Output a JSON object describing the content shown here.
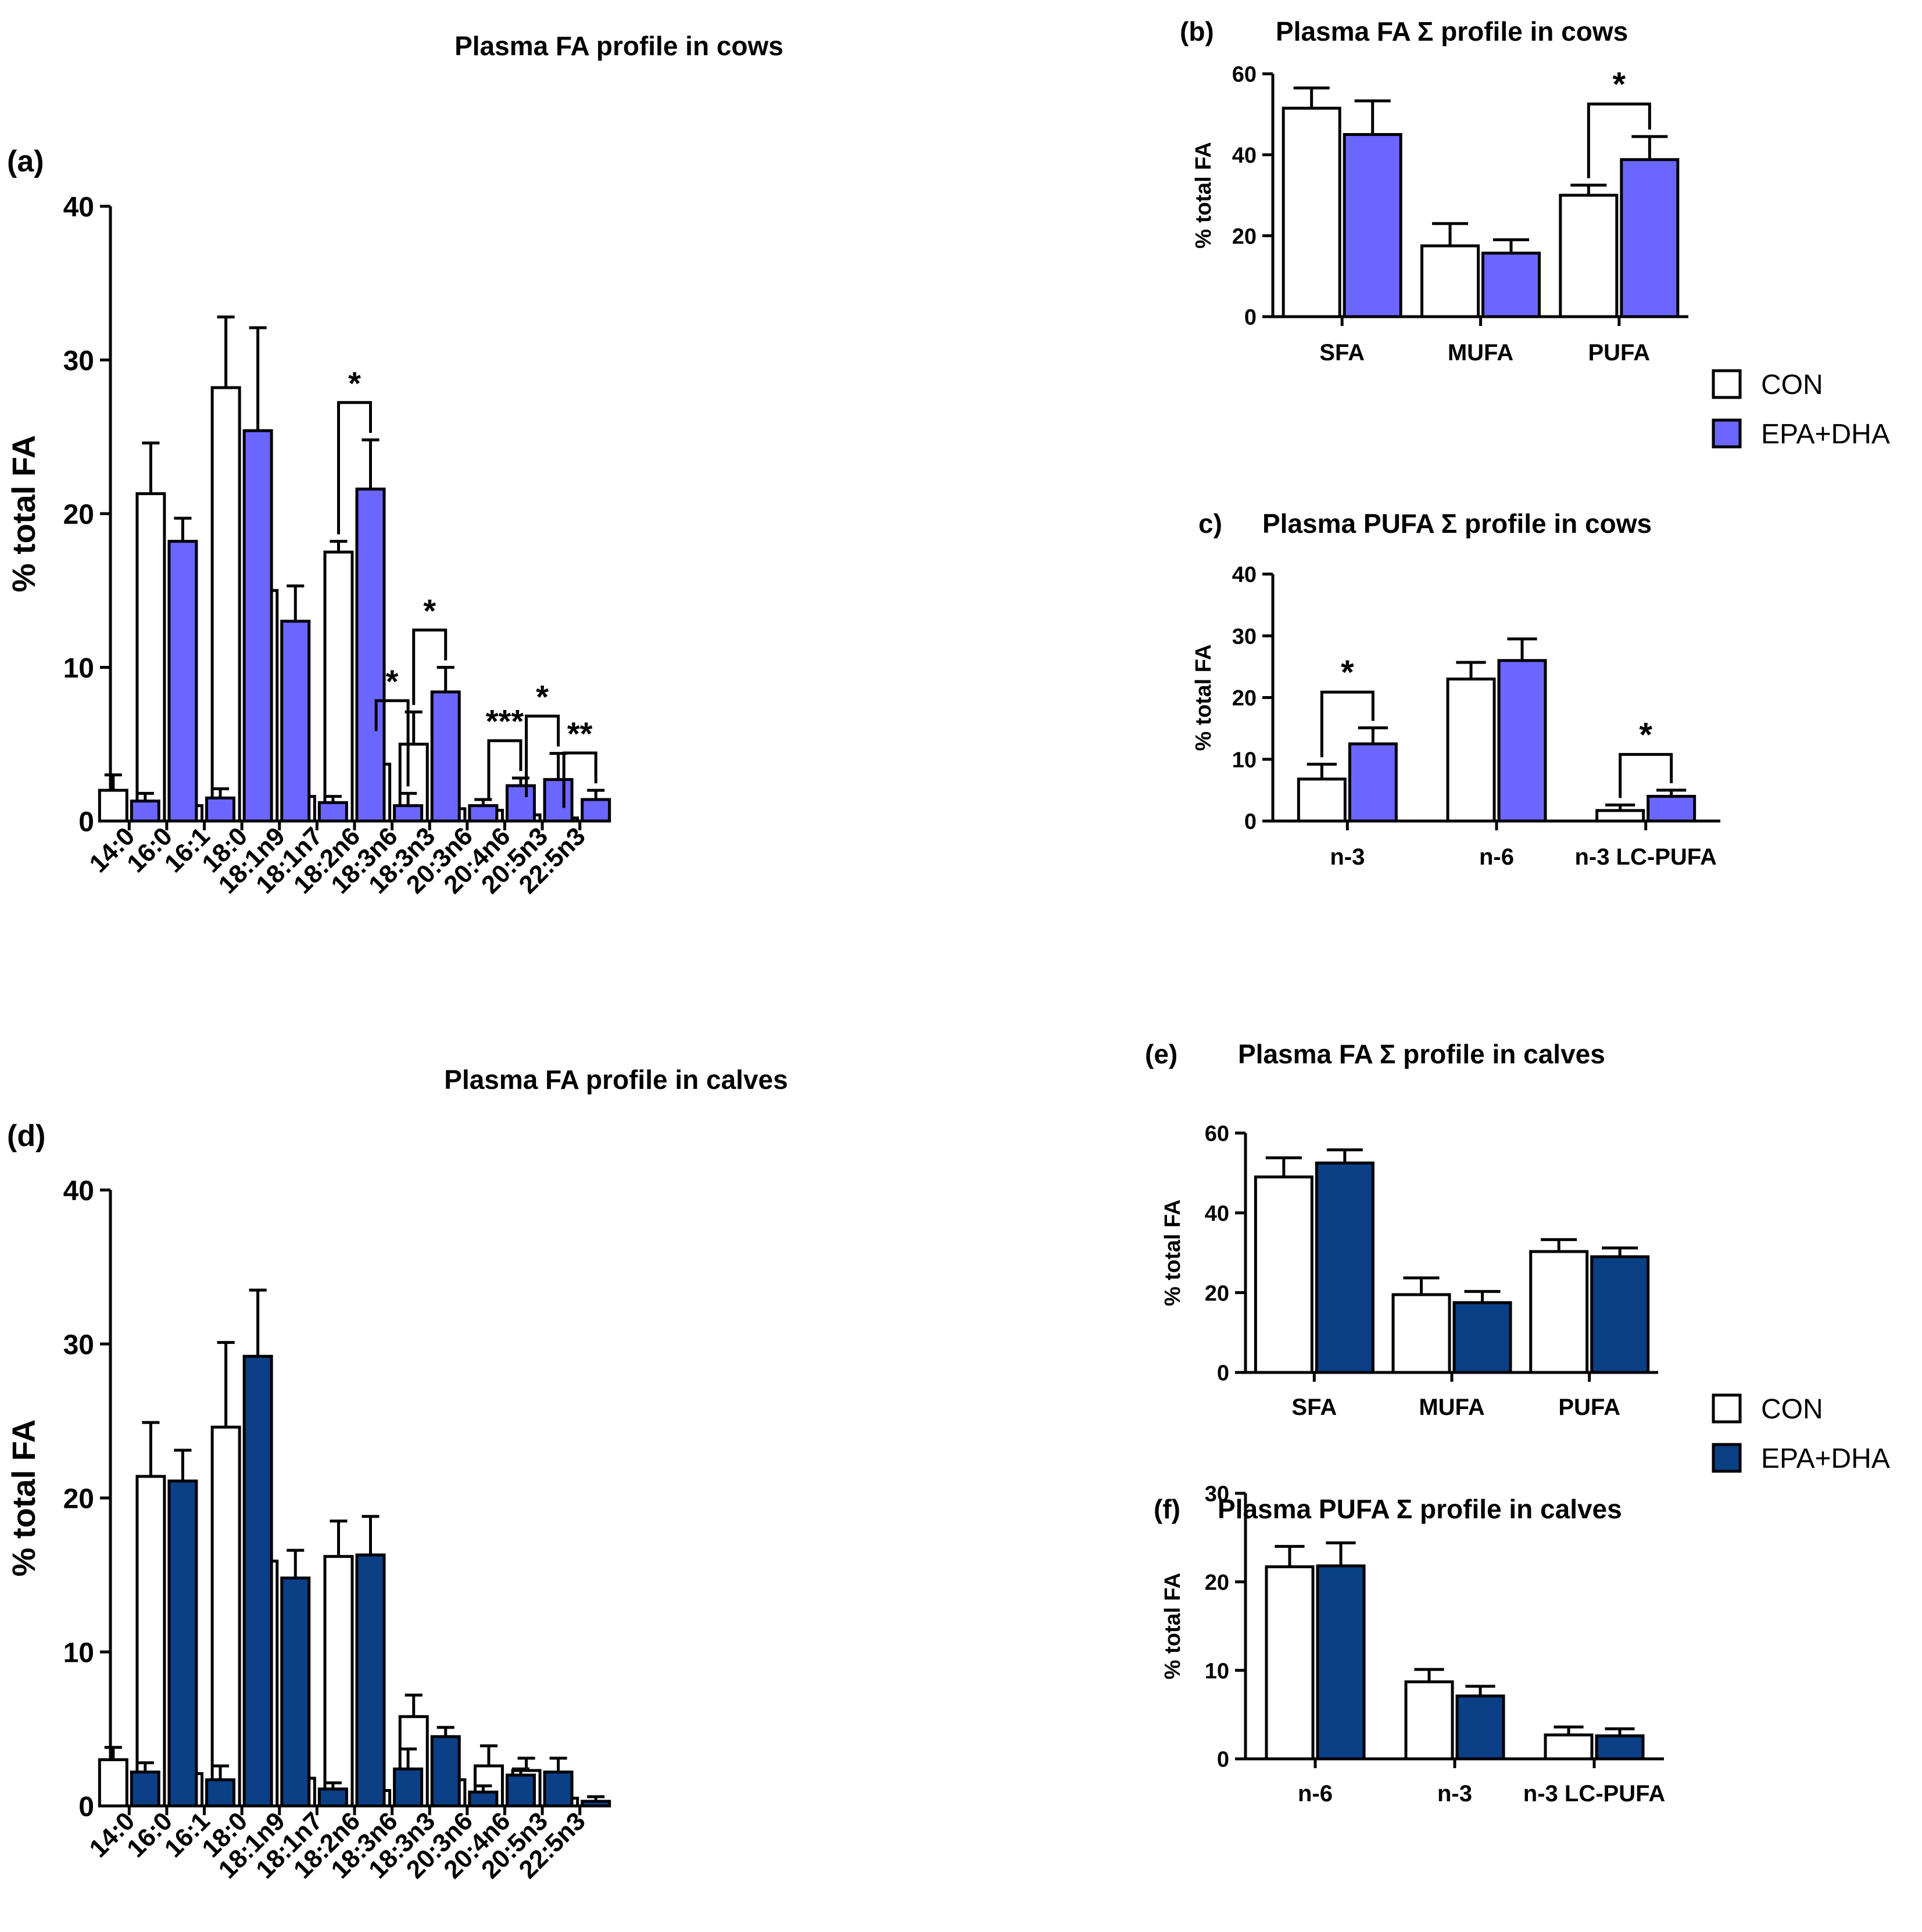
{
  "colors": {
    "con_fill": "#ffffff",
    "cow_fill": "#6b66ff",
    "calf_fill": "#0b3f86",
    "stroke": "#000000"
  },
  "legend_cows": {
    "items": [
      "CON",
      "EPA+DHA"
    ]
  },
  "legend_calves": {
    "items": [
      "CON",
      "EPA+DHA"
    ]
  },
  "chart_data": [
    {
      "id": "a",
      "panel_label": "(a)",
      "type": "bar",
      "title": "Plasma FA profile in cows",
      "xlabel": "",
      "ylabel": "% total FA",
      "ylim": [
        0,
        40
      ],
      "yticks": [
        0,
        10,
        20,
        30,
        40
      ],
      "categories": [
        "14:0",
        "16:0",
        "16:1",
        "18:0",
        "18:1n9",
        "18:1n7",
        "18:2n6",
        "18:3n6",
        "18:3n3",
        "20:3n6",
        "20:4n6",
        "20:5n3",
        "22:5n3"
      ],
      "series": [
        {
          "name": "CON",
          "values": [
            2.0,
            21.3,
            1.0,
            28.2,
            15.0,
            1.6,
            17.5,
            3.7,
            5.0,
            0.8,
            0.7,
            0.4,
            0.2
          ],
          "errors": [
            1.0,
            3.3,
            0.5,
            4.6,
            3.8,
            1.1,
            0.7,
            1.7,
            2.1,
            0.5,
            0.3,
            0.7,
            0.2
          ]
        },
        {
          "name": "EPA+DHA",
          "values": [
            1.3,
            18.2,
            1.5,
            25.4,
            13.0,
            1.2,
            21.6,
            1.0,
            8.4,
            1.0,
            2.3,
            2.7,
            1.4
          ],
          "errors": [
            0.5,
            1.5,
            0.6,
            6.7,
            2.3,
            0.4,
            3.2,
            0.8,
            1.6,
            0.4,
            0.5,
            1.7,
            0.6
          ]
        }
      ],
      "significance": [
        {
          "category": "18:2n6",
          "label": "*"
        },
        {
          "category": "18:3n6",
          "label": "*"
        },
        {
          "category": "18:3n3",
          "label": "*"
        },
        {
          "category": "20:4n6",
          "label": "***"
        },
        {
          "category": "20:5n3",
          "label": "*"
        },
        {
          "category": "22:5n3",
          "label": "**"
        }
      ]
    },
    {
      "id": "b",
      "panel_label": "(b)",
      "type": "bar",
      "title": "Plasma FA Σ profile in cows",
      "ylabel": "% total FA",
      "ylim": [
        0,
        60
      ],
      "yticks": [
        0,
        20,
        40,
        60
      ],
      "categories": [
        "SFA",
        "MUFA",
        "PUFA"
      ],
      "series": [
        {
          "name": "CON",
          "values": [
            51.5,
            17.5,
            30.0
          ],
          "errors": [
            5.0,
            5.5,
            2.5
          ]
        },
        {
          "name": "EPA+DHA",
          "values": [
            45.0,
            15.7,
            38.8
          ],
          "errors": [
            8.3,
            3.3,
            5.7
          ]
        }
      ],
      "significance": [
        {
          "category": "PUFA",
          "label": "*"
        }
      ]
    },
    {
      "id": "c",
      "panel_label": "c)",
      "type": "bar",
      "title": "Plasma PUFA Σ profile in cows",
      "ylabel": "% total FA",
      "ylim": [
        0,
        40
      ],
      "yticks": [
        0,
        10,
        20,
        30,
        40
      ],
      "categories": [
        "n-3",
        "n-6",
        "n-3 LC-PUFA"
      ],
      "series": [
        {
          "name": "CON",
          "values": [
            6.8,
            23.0,
            1.7
          ],
          "errors": [
            2.4,
            2.7,
            0.9
          ]
        },
        {
          "name": "EPA+DHA",
          "values": [
            12.5,
            26.0,
            4.0
          ],
          "errors": [
            2.6,
            3.5,
            1.0
          ]
        }
      ],
      "significance": [
        {
          "category": "n-3",
          "label": "*"
        },
        {
          "category": "n-3 LC-PUFA",
          "label": "*"
        }
      ]
    },
    {
      "id": "d",
      "panel_label": "(d)",
      "type": "bar",
      "title": "Plasma FA profile in calves",
      "xlabel": "",
      "ylabel": "% total FA",
      "ylim": [
        0,
        40
      ],
      "yticks": [
        0,
        10,
        20,
        30,
        40
      ],
      "categories": [
        "14:0",
        "16:0",
        "16:1",
        "18:0",
        "18:1n9",
        "18:1n7",
        "18:2n6",
        "18:3n6",
        "18:3n3",
        "20:3n6",
        "20:4n6",
        "20:5n3",
        "22:5n3"
      ],
      "series": [
        {
          "name": "CON",
          "values": [
            3.0,
            21.4,
            2.1,
            24.6,
            15.9,
            1.8,
            16.2,
            1.0,
            5.8,
            1.7,
            2.6,
            2.3,
            0.5
          ],
          "errors": [
            0.8,
            3.5,
            0.8,
            5.5,
            4.4,
            0.6,
            2.3,
            1.1,
            1.4,
            2.7,
            1.3,
            0.8,
            0.4
          ]
        },
        {
          "name": "EPA+DHA",
          "values": [
            2.2,
            21.1,
            1.7,
            29.2,
            14.8,
            1.1,
            16.3,
            2.4,
            4.5,
            0.9,
            2.0,
            2.2,
            0.3
          ],
          "errors": [
            0.6,
            2.0,
            0.9,
            4.3,
            1.8,
            0.4,
            2.5,
            1.3,
            0.6,
            0.4,
            0.4,
            0.9,
            0.3
          ]
        }
      ],
      "significance": []
    },
    {
      "id": "e",
      "panel_label": "(e)",
      "type": "bar",
      "title": "Plasma FA Σ profile in calves",
      "ylabel": "% total FA",
      "ylim": [
        0,
        60
      ],
      "yticks": [
        0,
        20,
        40,
        60
      ],
      "categories": [
        "SFA",
        "MUFA",
        "PUFA"
      ],
      "series": [
        {
          "name": "CON",
          "values": [
            49.0,
            19.5,
            30.3
          ],
          "errors": [
            4.8,
            4.2,
            3.0
          ]
        },
        {
          "name": "EPA+DHA",
          "values": [
            52.5,
            17.5,
            29.0
          ],
          "errors": [
            3.3,
            2.8,
            2.2
          ]
        }
      ],
      "significance": []
    },
    {
      "id": "f",
      "panel_label": "(f)",
      "type": "bar",
      "title": "Plasma PUFA Σ profile in calves",
      "ylabel": "% total FA",
      "ylim": [
        0,
        30
      ],
      "yticks": [
        0,
        10,
        20,
        30
      ],
      "categories": [
        "n-6",
        "n-3",
        "n-3 LC-PUFA"
      ],
      "series": [
        {
          "name": "CON",
          "values": [
            21.7,
            8.7,
            2.7
          ],
          "errors": [
            2.3,
            1.4,
            0.9
          ]
        },
        {
          "name": "EPA+DHA",
          "values": [
            21.8,
            7.1,
            2.6
          ],
          "errors": [
            2.6,
            1.1,
            0.8
          ]
        }
      ],
      "significance": []
    }
  ]
}
